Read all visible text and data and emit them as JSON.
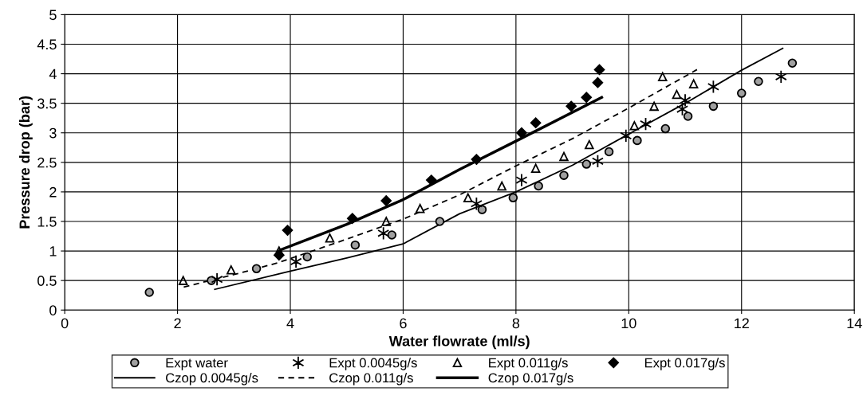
{
  "chart_data": {
    "type": "scatter",
    "xlabel": "Water flowrate (ml/s)",
    "ylabel": "Pressure drop (bar)",
    "xlim": [
      0,
      14
    ],
    "xticks": [
      0,
      2,
      4,
      6,
      8,
      10,
      12,
      14
    ],
    "ylim": [
      0,
      5
    ],
    "yticks": [
      0,
      0.5,
      1,
      1.5,
      2,
      2.5,
      3,
      3.5,
      4,
      4.5,
      5
    ],
    "grid": true,
    "legend": "bottom",
    "series": [
      {
        "name": "Expt water",
        "marker": "circle",
        "color": "#a0a0a0",
        "x": [
          1.5,
          2.6,
          3.4,
          4.3,
          5.15,
          5.8,
          6.65,
          7.4,
          7.95,
          8.4,
          8.85,
          9.25,
          9.65,
          10.15,
          10.65,
          11.05,
          11.5,
          12.0,
          12.3,
          12.9
        ],
        "values": [
          0.3,
          0.5,
          0.7,
          0.9,
          1.1,
          1.27,
          1.5,
          1.7,
          1.9,
          2.1,
          2.28,
          2.47,
          2.68,
          2.87,
          3.07,
          3.28,
          3.45,
          3.67,
          3.87,
          4.18
        ]
      },
      {
        "name": "Expt 0.0045g/s",
        "marker": "cross",
        "color": "#000000",
        "x": [
          2.7,
          4.1,
          5.65,
          7.3,
          8.1,
          9.45,
          9.95,
          10.3,
          10.95,
          11.0,
          11.5,
          12.7
        ],
        "values": [
          0.52,
          0.82,
          1.3,
          1.8,
          2.2,
          2.52,
          2.95,
          3.15,
          3.4,
          3.55,
          3.78,
          3.95
        ]
      },
      {
        "name": "Expt 0.011g/s",
        "marker": "triangle",
        "color": "#000000",
        "x": [
          2.1,
          2.95,
          3.8,
          4.7,
          5.7,
          6.3,
          7.15,
          7.75,
          8.35,
          8.85,
          9.3,
          10.1,
          10.45,
          10.6,
          10.85,
          11.15
        ],
        "values": [
          0.5,
          0.68,
          1.0,
          1.22,
          1.5,
          1.72,
          1.9,
          2.1,
          2.4,
          2.6,
          2.8,
          3.12,
          3.45,
          3.95,
          3.65,
          3.83
        ]
      },
      {
        "name": "Expt 0.017g/s",
        "marker": "diamond",
        "color": "#000000",
        "x": [
          3.8,
          3.95,
          5.1,
          5.7,
          6.5,
          7.3,
          8.1,
          8.35,
          8.98,
          9.25,
          9.45,
          9.48
        ],
        "values": [
          0.93,
          1.35,
          1.55,
          1.85,
          2.2,
          2.55,
          3.0,
          3.17,
          3.45,
          3.6,
          3.85,
          4.07
        ]
      },
      {
        "name": "Czop 0.0045g/s",
        "type": "line",
        "line_style": "solid",
        "color": "#000000",
        "x": [
          2.66,
          4,
          5,
          6,
          7,
          8,
          9,
          10,
          11,
          12,
          12.73
        ],
        "values": [
          0.35,
          0.66,
          0.88,
          1.12,
          1.63,
          2.0,
          2.45,
          2.98,
          3.5,
          4.06,
          4.43
        ]
      },
      {
        "name": "Czop 0.011g/s",
        "type": "line",
        "line_style": "dashed",
        "color": "#000000",
        "x": [
          2.11,
          3,
          3.78,
          5,
          6,
          7,
          8,
          9,
          10,
          11.21
        ],
        "values": [
          0.39,
          0.6,
          0.8,
          1.2,
          1.54,
          1.95,
          2.44,
          2.9,
          3.42,
          4.07
        ]
      },
      {
        "name": "Czop 0.017g/s",
        "type": "line",
        "line_style": "solid",
        "color": "#000000",
        "x": [
          3.83,
          5,
          6,
          7,
          8,
          9.52
        ],
        "values": [
          1.02,
          1.45,
          1.87,
          2.38,
          2.86,
          3.6
        ]
      }
    ]
  }
}
